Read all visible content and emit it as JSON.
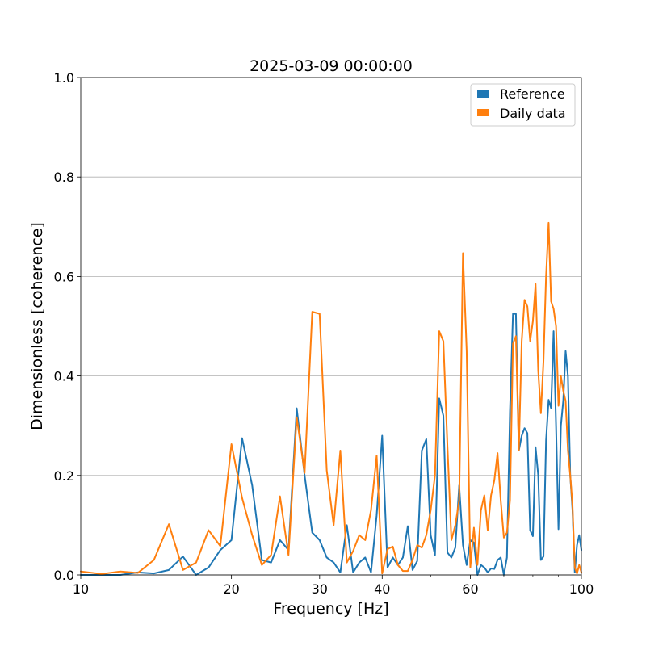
{
  "chart_data": {
    "type": "line",
    "title": "2025-03-09 00:00:00",
    "xlabel": "Frequency [Hz]",
    "ylabel": "Dimensionless [coherence]",
    "xscale": "log",
    "xlim": [
      10,
      100
    ],
    "ylim": [
      0,
      1.0
    ],
    "x_ticks": [
      10,
      20,
      30,
      40,
      60,
      100
    ],
    "x_tick_labels": [
      "10",
      "20",
      "30",
      "40",
      "60",
      "100"
    ],
    "y_ticks": [
      0,
      0.2,
      0.4,
      0.6,
      0.8,
      1.0
    ],
    "y_tick_labels": [
      "0.0",
      "0.2",
      "0.4",
      "0.6",
      "0.8",
      "1.0"
    ],
    "grid": "horizontal",
    "legend_position": "top-right",
    "series": [
      {
        "name": "Reference",
        "color": "#1f77b4",
        "points": [
          [
            10,
            0.0
          ],
          [
            11,
            0.0
          ],
          [
            12,
            0.0
          ],
          [
            13,
            0.005
          ],
          [
            14,
            0.003
          ],
          [
            15,
            0.01
          ],
          [
            16,
            0.037
          ],
          [
            17,
            0.0
          ],
          [
            18,
            0.015
          ],
          [
            19,
            0.05
          ],
          [
            20,
            0.07
          ],
          [
            21,
            0.275
          ],
          [
            22,
            0.18
          ],
          [
            23,
            0.03
          ],
          [
            24,
            0.025
          ],
          [
            25,
            0.07
          ],
          [
            26,
            0.05
          ],
          [
            27,
            0.335
          ],
          [
            28,
            0.2
          ],
          [
            29,
            0.085
          ],
          [
            30,
            0.07
          ],
          [
            31,
            0.035
          ],
          [
            32,
            0.025
          ],
          [
            33,
            0.005
          ],
          [
            34,
            0.1
          ],
          [
            35,
            0.005
          ],
          [
            36,
            0.025
          ],
          [
            37,
            0.035
          ],
          [
            38,
            0.005
          ],
          [
            39,
            0.12
          ],
          [
            40,
            0.28
          ],
          [
            41,
            0.015
          ],
          [
            42,
            0.035
          ],
          [
            43,
            0.02
          ],
          [
            44,
            0.035
          ],
          [
            45,
            0.098
          ],
          [
            46,
            0.01
          ],
          [
            47,
            0.028
          ],
          [
            48,
            0.25
          ],
          [
            49,
            0.273
          ],
          [
            50,
            0.08
          ],
          [
            51,
            0.04
          ],
          [
            52,
            0.355
          ],
          [
            53,
            0.32
          ],
          [
            54,
            0.045
          ],
          [
            55,
            0.035
          ],
          [
            56,
            0.055
          ],
          [
            57,
            0.18
          ],
          [
            58,
            0.06
          ],
          [
            59,
            0.02
          ],
          [
            60,
            0.07
          ],
          [
            61,
            0.065
          ],
          [
            62,
            0.0
          ],
          [
            63,
            0.02
          ],
          [
            64,
            0.015
          ],
          [
            65,
            0.005
          ],
          [
            66,
            0.013
          ],
          [
            67,
            0.012
          ],
          [
            68,
            0.03
          ],
          [
            69,
            0.035
          ],
          [
            70,
            0.0
          ],
          [
            71,
            0.035
          ],
          [
            72,
            0.33
          ],
          [
            73,
            0.525
          ],
          [
            74,
            0.525
          ],
          [
            75,
            0.25
          ],
          [
            76,
            0.28
          ],
          [
            77,
            0.295
          ],
          [
            78,
            0.285
          ],
          [
            79,
            0.09
          ],
          [
            80,
            0.078
          ],
          [
            81,
            0.257
          ],
          [
            82,
            0.2
          ],
          [
            83,
            0.03
          ],
          [
            84,
            0.037
          ],
          [
            85,
            0.27
          ],
          [
            86,
            0.352
          ],
          [
            87,
            0.335
          ],
          [
            88,
            0.49
          ],
          [
            89,
            0.3
          ],
          [
            90,
            0.092
          ],
          [
            91,
            0.3
          ],
          [
            92,
            0.35
          ],
          [
            93,
            0.45
          ],
          [
            94,
            0.4
          ],
          [
            95,
            0.2
          ],
          [
            96,
            0.13
          ],
          [
            97,
            0.005
          ],
          [
            98,
            0.06
          ],
          [
            99,
            0.08
          ],
          [
            100,
            0.05
          ]
        ]
      },
      {
        "name": "Daily data",
        "color": "#ff7f0e",
        "points": [
          [
            10,
            0.007
          ],
          [
            11,
            0.002
          ],
          [
            12,
            0.007
          ],
          [
            13,
            0.004
          ],
          [
            14,
            0.03
          ],
          [
            15,
            0.102
          ],
          [
            16,
            0.01
          ],
          [
            17,
            0.025
          ],
          [
            18,
            0.09
          ],
          [
            19,
            0.058
          ],
          [
            20,
            0.263
          ],
          [
            21,
            0.155
          ],
          [
            22,
            0.08
          ],
          [
            23,
            0.02
          ],
          [
            24,
            0.04
          ],
          [
            25,
            0.158
          ],
          [
            26,
            0.04
          ],
          [
            27,
            0.317
          ],
          [
            28,
            0.205
          ],
          [
            29,
            0.529
          ],
          [
            30,
            0.525
          ],
          [
            31,
            0.21
          ],
          [
            32,
            0.1
          ],
          [
            33,
            0.25
          ],
          [
            34,
            0.025
          ],
          [
            35,
            0.048
          ],
          [
            36,
            0.08
          ],
          [
            37,
            0.07
          ],
          [
            38,
            0.13
          ],
          [
            39,
            0.24
          ],
          [
            40,
            0.003
          ],
          [
            41,
            0.052
          ],
          [
            42,
            0.057
          ],
          [
            43,
            0.02
          ],
          [
            44,
            0.008
          ],
          [
            45,
            0.008
          ],
          [
            46,
            0.03
          ],
          [
            47,
            0.06
          ],
          [
            48,
            0.055
          ],
          [
            49,
            0.08
          ],
          [
            50,
            0.13
          ],
          [
            51,
            0.2
          ],
          [
            52,
            0.49
          ],
          [
            53,
            0.47
          ],
          [
            54,
            0.26
          ],
          [
            55,
            0.07
          ],
          [
            56,
            0.1
          ],
          [
            57,
            0.15
          ],
          [
            58,
            0.647
          ],
          [
            59,
            0.45
          ],
          [
            60,
            0.015
          ],
          [
            61,
            0.095
          ],
          [
            62,
            0.02
          ],
          [
            63,
            0.13
          ],
          [
            64,
            0.16
          ],
          [
            65,
            0.09
          ],
          [
            66,
            0.16
          ],
          [
            67,
            0.19
          ],
          [
            68,
            0.245
          ],
          [
            69,
            0.15
          ],
          [
            70,
            0.075
          ],
          [
            71,
            0.085
          ],
          [
            72,
            0.15
          ],
          [
            73,
            0.465
          ],
          [
            74,
            0.48
          ],
          [
            75,
            0.25
          ],
          [
            76,
            0.47
          ],
          [
            77,
            0.553
          ],
          [
            78,
            0.54
          ],
          [
            79,
            0.47
          ],
          [
            80,
            0.51
          ],
          [
            81,
            0.585
          ],
          [
            82,
            0.41
          ],
          [
            83,
            0.325
          ],
          [
            84,
            0.43
          ],
          [
            85,
            0.6
          ],
          [
            86,
            0.708
          ],
          [
            87,
            0.55
          ],
          [
            88,
            0.535
          ],
          [
            89,
            0.5
          ],
          [
            90,
            0.34
          ],
          [
            91,
            0.4
          ],
          [
            92,
            0.37
          ],
          [
            93,
            0.35
          ],
          [
            94,
            0.25
          ],
          [
            95,
            0.2
          ],
          [
            96,
            0.14
          ],
          [
            97,
            0.015
          ],
          [
            98,
            0.003
          ],
          [
            99,
            0.02
          ],
          [
            100,
            0.005
          ]
        ]
      }
    ]
  }
}
